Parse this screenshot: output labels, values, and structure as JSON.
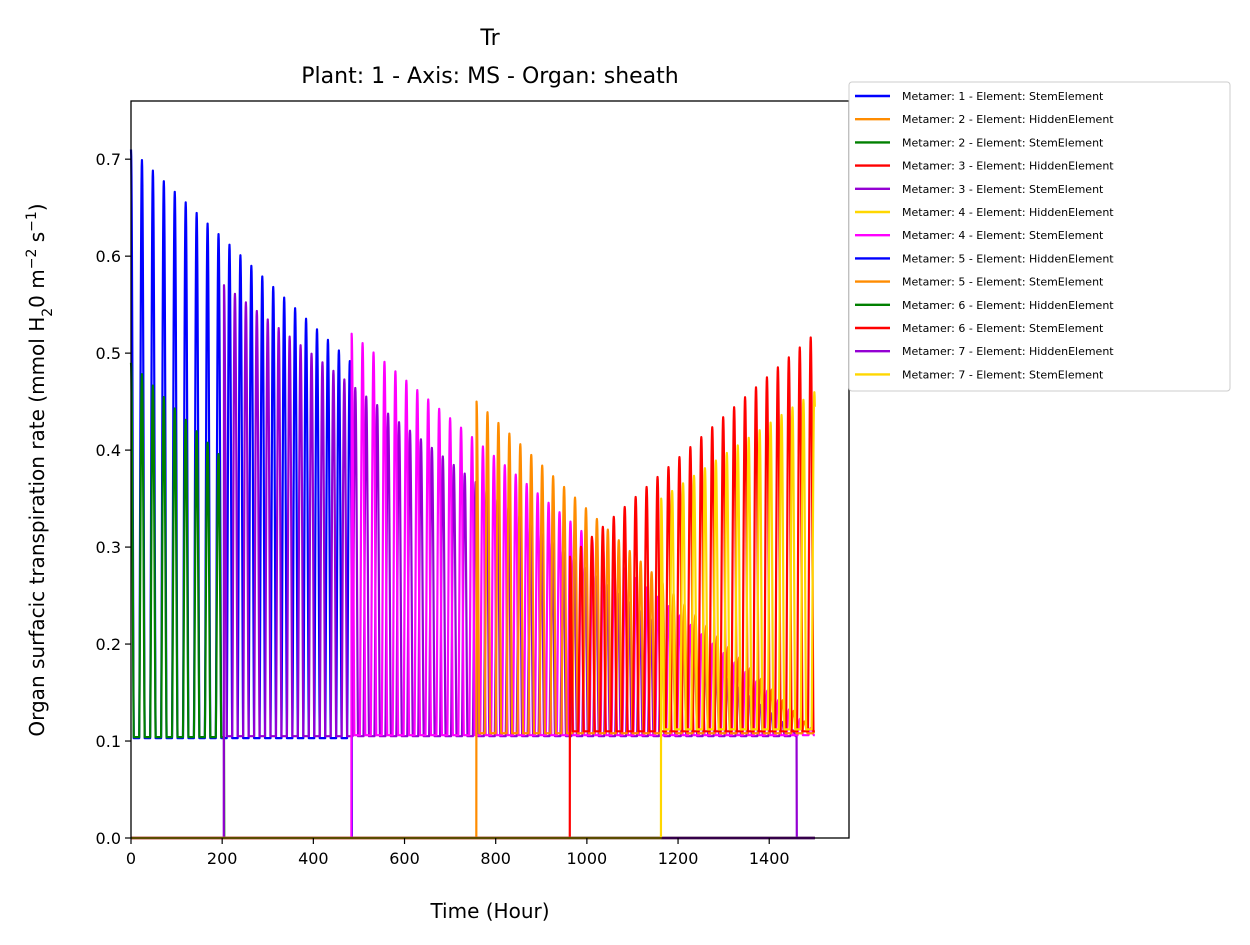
{
  "chart_data": {
    "type": "line",
    "title": "Tr",
    "subtitle": "Plant: 1 - Axis: MS - Organ: sheath",
    "xlabel": "Time (Hour)",
    "ylabel_parts": {
      "pre": "Organ surfacic transpiration rate (mmol H",
      "sub": "2",
      "mid": "0 m",
      "sup1": "−2",
      "mid2": " s",
      "sup2": "−1",
      "post": ")"
    },
    "xlim": [
      0,
      1575
    ],
    "ylim": [
      0,
      0.76
    ],
    "xticks": [
      0,
      200,
      400,
      600,
      800,
      1000,
      1200,
      1400
    ],
    "xtick_labels": [
      "0",
      "200",
      "400",
      "600",
      "800",
      "1000",
      "1200",
      "1400"
    ],
    "yticks": [
      0.0,
      0.1,
      0.2,
      0.3,
      0.4,
      0.5,
      0.6,
      0.7
    ],
    "ytick_labels": [
      "0.0",
      "0.1",
      "0.2",
      "0.3",
      "0.4",
      "0.5",
      "0.6",
      "0.7"
    ],
    "grid": false,
    "legend_position": "outside-top-right",
    "series": [
      {
        "name": "Metamer: 1 - Element: StemElement",
        "color": "#0000ff",
        "start": 0,
        "end": 484,
        "amp_start": 0.71,
        "amp_end": 0.49,
        "base": 0.103,
        "after": 0.0
      },
      {
        "name": "Metamer: 2 - Element: HiddenElement",
        "color": "#ff8c00",
        "start": 0,
        "end": 1500,
        "amp_start": 0.0,
        "amp_end": 0.0,
        "base": 0.0,
        "after": 0.0
      },
      {
        "name": "Metamer: 2 - Element: StemElement",
        "color": "#008000",
        "start": 0,
        "end": 204,
        "amp_start": 0.49,
        "amp_end": 0.39,
        "base": 0.104,
        "after": 0.0
      },
      {
        "name": "Metamer: 3 - Element: HiddenElement",
        "color": "#ff0000",
        "start": 0,
        "end": 1500,
        "amp_start": 0.0,
        "amp_end": 0.0,
        "base": 0.0,
        "after": 0.0
      },
      {
        "name": "Metamer: 3 - Element: StemElement",
        "color": "#9400d3",
        "start": 204,
        "end": 1460,
        "amp_start": 0.57,
        "amp_end": 0.108,
        "base": 0.105,
        "after": 0.0
      },
      {
        "name": "Metamer: 4 - Element: HiddenElement",
        "color": "#ffd700",
        "start": 0,
        "end": 1500,
        "amp_start": 0.0,
        "amp_end": 0.0,
        "base": 0.0,
        "after": 0.0
      },
      {
        "name": "Metamer: 4 - Element: StemElement",
        "color": "#ff00ff",
        "start": 484,
        "end": 1500,
        "amp_start": 0.52,
        "amp_end": 0.11,
        "base": 0.106,
        "after": 0.0
      },
      {
        "name": "Metamer: 5 - Element: HiddenElement",
        "color": "#0000ff",
        "start": 0,
        "end": 1500,
        "amp_start": 0.0,
        "amp_end": 0.0,
        "base": 0.0,
        "after": 0.0
      },
      {
        "name": "Metamer: 5 - Element: StemElement",
        "color": "#ff8c00",
        "start": 758,
        "end": 1500,
        "amp_start": 0.45,
        "amp_end": 0.11,
        "base": 0.108,
        "after": 0.0
      },
      {
        "name": "Metamer: 6 - Element: HiddenElement",
        "color": "#008000",
        "start": 0,
        "end": 1500,
        "amp_start": 0.0,
        "amp_end": 0.0,
        "base": 0.0,
        "after": 0.0
      },
      {
        "name": "Metamer: 6 - Element: StemElement",
        "color": "#ff0000",
        "start": 963,
        "end": 1500,
        "amp_start": 0.29,
        "amp_end": 0.52,
        "base": 0.11,
        "after": 0.0
      },
      {
        "name": "Metamer: 7 - Element: HiddenElement",
        "color": "#9400d3",
        "start": 0,
        "end": 1500,
        "amp_start": 0.0,
        "amp_end": 0.0,
        "base": 0.0,
        "after": 0.0
      },
      {
        "name": "Metamer: 7 - Element: StemElement",
        "color": "#ffd700",
        "start": 1163,
        "end": 1500,
        "amp_start": 0.35,
        "amp_end": 0.46,
        "base": 0.112,
        "after": 0.0
      }
    ]
  }
}
